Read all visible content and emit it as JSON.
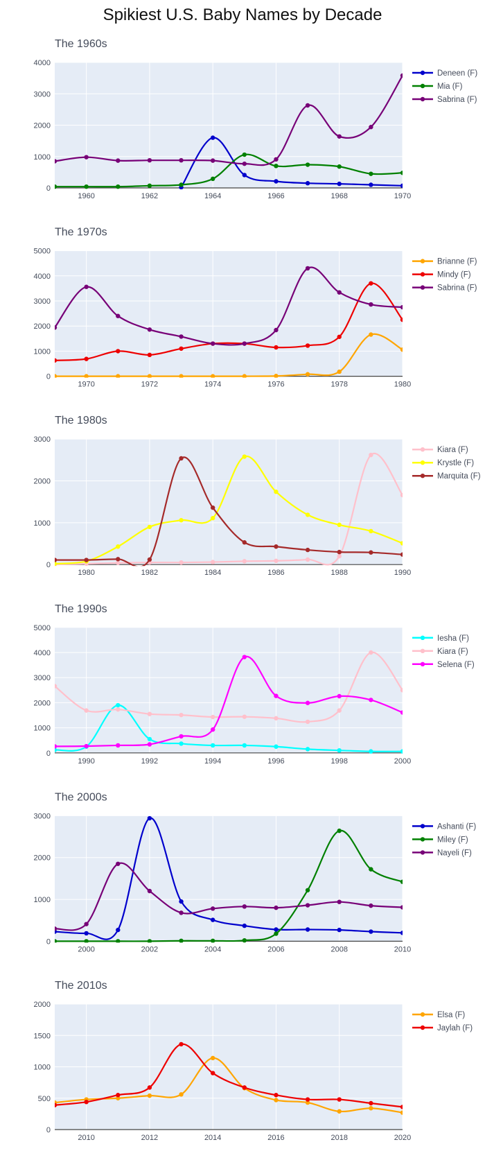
{
  "title": "Spikiest U.S. Baby Names by Decade",
  "chart_data": [
    {
      "type": "line",
      "title": "The 1960s",
      "x": [
        1959,
        1960,
        1961,
        1962,
        1963,
        1964,
        1965,
        1966,
        1967,
        1968,
        1969,
        1970
      ],
      "xticks": [
        1960,
        1962,
        1964,
        1966,
        1968,
        1970
      ],
      "xlim": [
        1959,
        1970
      ],
      "ylim": [
        0,
        4000
      ],
      "yticks": [
        0,
        1000,
        2000,
        3000,
        4000
      ],
      "legend": "top-right",
      "series": [
        {
          "name": "Deneen (F)",
          "color": "#0000cc",
          "values": [
            null,
            null,
            null,
            null,
            20,
            1600,
            410,
            210,
            150,
            130,
            100,
            70
          ]
        },
        {
          "name": "Mia (F)",
          "color": "#008000",
          "values": [
            40,
            40,
            40,
            70,
            100,
            290,
            1060,
            700,
            740,
            680,
            450,
            480
          ]
        },
        {
          "name": "Sabrina (F)",
          "color": "#770077",
          "values": [
            850,
            980,
            870,
            880,
            880,
            870,
            770,
            910,
            2630,
            1640,
            1940,
            3580
          ]
        }
      ]
    },
    {
      "type": "line",
      "title": "The 1970s",
      "x": [
        1969,
        1970,
        1971,
        1972,
        1973,
        1974,
        1975,
        1976,
        1977,
        1978,
        1979,
        1980
      ],
      "xticks": [
        1970,
        1972,
        1974,
        1976,
        1978,
        1980
      ],
      "xlim": [
        1969,
        1980
      ],
      "ylim": [
        0,
        5000
      ],
      "yticks": [
        0,
        1000,
        2000,
        3000,
        4000,
        5000
      ],
      "legend": "top-right",
      "series": [
        {
          "name": "Brianne (F)",
          "color": "#ffa500",
          "values": [
            0,
            0,
            0,
            0,
            0,
            0,
            0,
            10,
            80,
            180,
            1660,
            1060
          ]
        },
        {
          "name": "Mindy (F)",
          "color": "#ee0000",
          "values": [
            630,
            690,
            1000,
            850,
            1100,
            1300,
            1300,
            1150,
            1220,
            1570,
            3700,
            2250
          ]
        },
        {
          "name": "Sabrina (F)",
          "color": "#770077",
          "values": [
            1940,
            3560,
            2400,
            1860,
            1580,
            1300,
            1300,
            1840,
            4300,
            3340,
            2860,
            2750
          ]
        }
      ]
    },
    {
      "type": "line",
      "title": "The 1980s",
      "x": [
        1979,
        1980,
        1981,
        1982,
        1983,
        1984,
        1985,
        1986,
        1987,
        1988,
        1989,
        1990
      ],
      "xticks": [
        1980,
        1982,
        1984,
        1986,
        1988,
        1990
      ],
      "xlim": [
        1979,
        1990
      ],
      "ylim": [
        0,
        3000
      ],
      "yticks": [
        0,
        1000,
        2000,
        3000
      ],
      "legend": "top-right",
      "series": [
        {
          "name": "Kiara (F)",
          "color": "#ffc0cb",
          "values": [
            0,
            20,
            40,
            50,
            50,
            60,
            80,
            90,
            120,
            200,
            2620,
            1660
          ]
        },
        {
          "name": "Krystle (F)",
          "color": "#ffff00",
          "values": [
            20,
            80,
            430,
            900,
            1060,
            1110,
            2580,
            1740,
            1190,
            950,
            800,
            510
          ]
        },
        {
          "name": "Marquita (F)",
          "color": "#a52a2a",
          "values": [
            110,
            110,
            130,
            120,
            2540,
            1360,
            530,
            430,
            350,
            300,
            290,
            240
          ]
        }
      ]
    },
    {
      "type": "line",
      "title": "The 1990s",
      "x": [
        1989,
        1990,
        1991,
        1992,
        1993,
        1994,
        1995,
        1996,
        1997,
        1998,
        1999,
        2000
      ],
      "xticks": [
        1990,
        1992,
        1994,
        1996,
        1998,
        2000
      ],
      "xlim": [
        1989,
        2000
      ],
      "ylim": [
        0,
        5000
      ],
      "yticks": [
        0,
        1000,
        2000,
        3000,
        4000,
        5000
      ],
      "legend": "top-right",
      "series": [
        {
          "name": "Iesha (F)",
          "color": "#00ffff",
          "values": [
            120,
            250,
            1900,
            550,
            370,
            300,
            300,
            250,
            150,
            100,
            60,
            60
          ]
        },
        {
          "name": "Kiara (F)",
          "color": "#ffc0cb",
          "values": [
            2660,
            1690,
            1730,
            1550,
            1510,
            1430,
            1440,
            1380,
            1240,
            1690,
            4000,
            2500
          ]
        },
        {
          "name": "Selena (F)",
          "color": "#ff00ff",
          "values": [
            260,
            270,
            300,
            340,
            660,
            930,
            3820,
            2270,
            1990,
            2260,
            2110,
            1610
          ]
        }
      ]
    },
    {
      "type": "line",
      "title": "The 2000s",
      "x": [
        1999,
        2000,
        2001,
        2002,
        2003,
        2004,
        2005,
        2006,
        2007,
        2008,
        2009,
        2010
      ],
      "xticks": [
        2000,
        2002,
        2004,
        2006,
        2008,
        2010
      ],
      "xlim": [
        1999,
        2010
      ],
      "ylim": [
        0,
        3000
      ],
      "yticks": [
        0,
        1000,
        2000,
        3000
      ],
      "legend": "top-right",
      "series": [
        {
          "name": "Ashanti (F)",
          "color": "#0000cc",
          "values": [
            230,
            190,
            270,
            2940,
            950,
            510,
            370,
            280,
            280,
            270,
            230,
            200
          ]
        },
        {
          "name": "Miley (F)",
          "color": "#008000",
          "values": [
            0,
            0,
            0,
            0,
            10,
            10,
            20,
            180,
            1220,
            2640,
            1720,
            1420
          ]
        },
        {
          "name": "Nayeli (F)",
          "color": "#770077",
          "values": [
            300,
            410,
            1850,
            1200,
            680,
            780,
            830,
            800,
            860,
            940,
            850,
            810
          ]
        }
      ]
    },
    {
      "type": "line",
      "title": "The 2010s",
      "x": [
        2009,
        2010,
        2011,
        2012,
        2013,
        2014,
        2015,
        2016,
        2017,
        2018,
        2019,
        2020
      ],
      "xticks": [
        2010,
        2012,
        2014,
        2016,
        2018,
        2020
      ],
      "xlim": [
        2009,
        2020
      ],
      "ylim": [
        0,
        2000
      ],
      "yticks": [
        0,
        500,
        1000,
        1500,
        2000
      ],
      "legend": "top-right",
      "series": [
        {
          "name": "Elsa (F)",
          "color": "#ffa500",
          "values": [
            430,
            480,
            500,
            540,
            560,
            1140,
            660,
            470,
            430,
            290,
            340,
            270
          ]
        },
        {
          "name": "Jaylah (F)",
          "color": "#ee0000",
          "values": [
            390,
            440,
            550,
            670,
            1360,
            900,
            670,
            550,
            480,
            480,
            420,
            360
          ]
        }
      ]
    }
  ]
}
